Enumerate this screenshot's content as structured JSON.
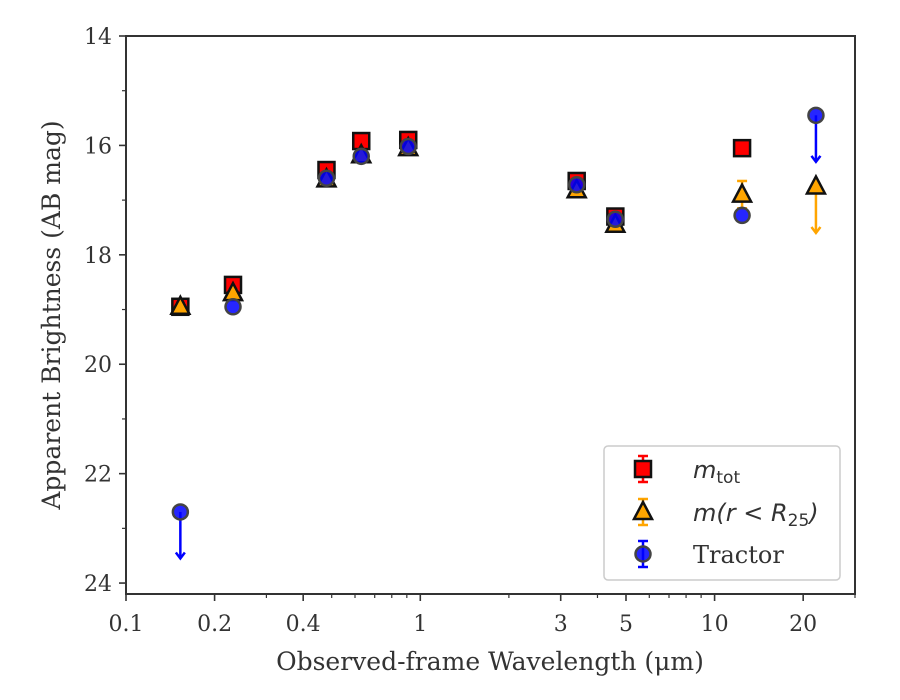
{
  "chart_data": {
    "type": "scatter",
    "xlabel": "Observed-frame Wavelength (μm)",
    "ylabel": "Apparent Brightness (AB mag)",
    "xscale": "log",
    "xlim": [
      0.1,
      30
    ],
    "ylim": [
      24.2,
      14
    ],
    "y_inverted": true,
    "xticks": [
      0.1,
      0.2,
      0.4,
      1,
      3,
      5,
      10,
      20
    ],
    "xtick_labels": [
      "0.1",
      "0.2",
      "0.4",
      "1",
      "3",
      "5",
      "10",
      "20"
    ],
    "yticks": [
      14,
      16,
      18,
      20,
      22,
      24
    ],
    "ytick_labels": [
      "14",
      "16",
      "18",
      "20",
      "22",
      "24"
    ],
    "grid": false,
    "legend_position": "bottom-right",
    "series": [
      {
        "name": "m_tot",
        "legend_main": "m",
        "legend_sub": "tot",
        "marker": "square",
        "color": "#ff0000",
        "points": [
          {
            "x": 0.153,
            "y": 18.95
          },
          {
            "x": 0.231,
            "y": 18.55
          },
          {
            "x": 0.48,
            "y": 16.45
          },
          {
            "x": 0.63,
            "y": 15.92
          },
          {
            "x": 0.91,
            "y": 15.9
          },
          {
            "x": 3.4,
            "y": 16.65
          },
          {
            "x": 4.6,
            "y": 17.3
          },
          {
            "x": 12.4,
            "y": 16.05
          }
        ]
      },
      {
        "name": "m(r < R_25)",
        "legend_main": "m(r < R",
        "legend_sub": "25",
        "legend_tail": ")",
        "marker": "triangle",
        "color": "#ffa500",
        "points": [
          {
            "x": 0.153,
            "y": 18.95,
            "err": 0.05
          },
          {
            "x": 0.231,
            "y": 18.7,
            "err": 0.05
          },
          {
            "x": 0.48,
            "y": 16.62,
            "err": 0.05
          },
          {
            "x": 0.63,
            "y": 16.18,
            "err": 0.05
          },
          {
            "x": 0.91,
            "y": 16.05,
            "err": 0.05
          },
          {
            "x": 3.4,
            "y": 16.82,
            "err": 0.05
          },
          {
            "x": 4.6,
            "y": 17.45,
            "err": 0.05
          },
          {
            "x": 12.4,
            "y": 16.9,
            "err": 0.25
          },
          {
            "x": 22.1,
            "y": 16.75,
            "upper_limit_to": 17.6
          }
        ]
      },
      {
        "name": "Tractor",
        "legend_main": "Tractor",
        "marker": "circle",
        "color": "#0000ff",
        "points": [
          {
            "x": 0.153,
            "y": 22.7,
            "upper_limit_to": 23.55
          },
          {
            "x": 0.231,
            "y": 18.95
          },
          {
            "x": 0.48,
            "y": 16.6
          },
          {
            "x": 0.63,
            "y": 16.2
          },
          {
            "x": 0.91,
            "y": 16.02
          },
          {
            "x": 3.4,
            "y": 16.72
          },
          {
            "x": 4.6,
            "y": 17.35
          },
          {
            "x": 12.4,
            "y": 17.28
          },
          {
            "x": 22.1,
            "y": 15.45,
            "upper_limit_to": 16.3
          }
        ]
      }
    ]
  }
}
